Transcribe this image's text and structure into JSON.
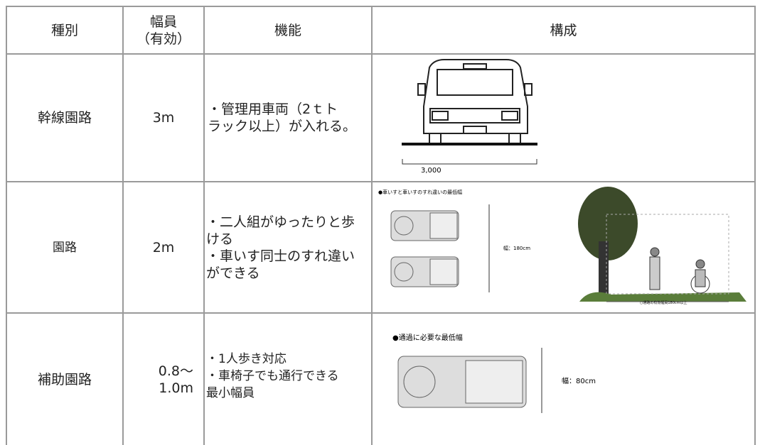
{
  "table": {
    "header": {
      "type": "種別",
      "width": [
        "幅員",
        "（有効）"
      ],
      "function": "機能",
      "composition": "構成"
    },
    "rows": [
      {
        "type": "幹線園路",
        "width": [
          "3m"
        ],
        "function": [
          "・管理用車両（2ｔト",
          "ラック以上）が入れる。"
        ],
        "figure": {
          "dimension": "3,000"
        }
      },
      {
        "type": "園路",
        "width": [
          "2m"
        ],
        "function": [
          "・二人組がゆったりと歩",
          "ける",
          "・車いす同士のすれ違い",
          "ができる"
        ],
        "figure": {
          "caption": "●車いすと車いすのすれ違いの最低幅",
          "dimension": "幅：180cm",
          "note": "○通路の有効幅員180cm以上"
        }
      },
      {
        "type": "補助園路",
        "width": [
          "0.8～",
          "1.0m"
        ],
        "function": [
          "・1人歩き対応",
          "・車椅子でも通行できる",
          "最小幅員"
        ],
        "figure": {
          "caption": "●通過に必要な最低幅",
          "dimension": "幅：80cm"
        }
      }
    ]
  }
}
